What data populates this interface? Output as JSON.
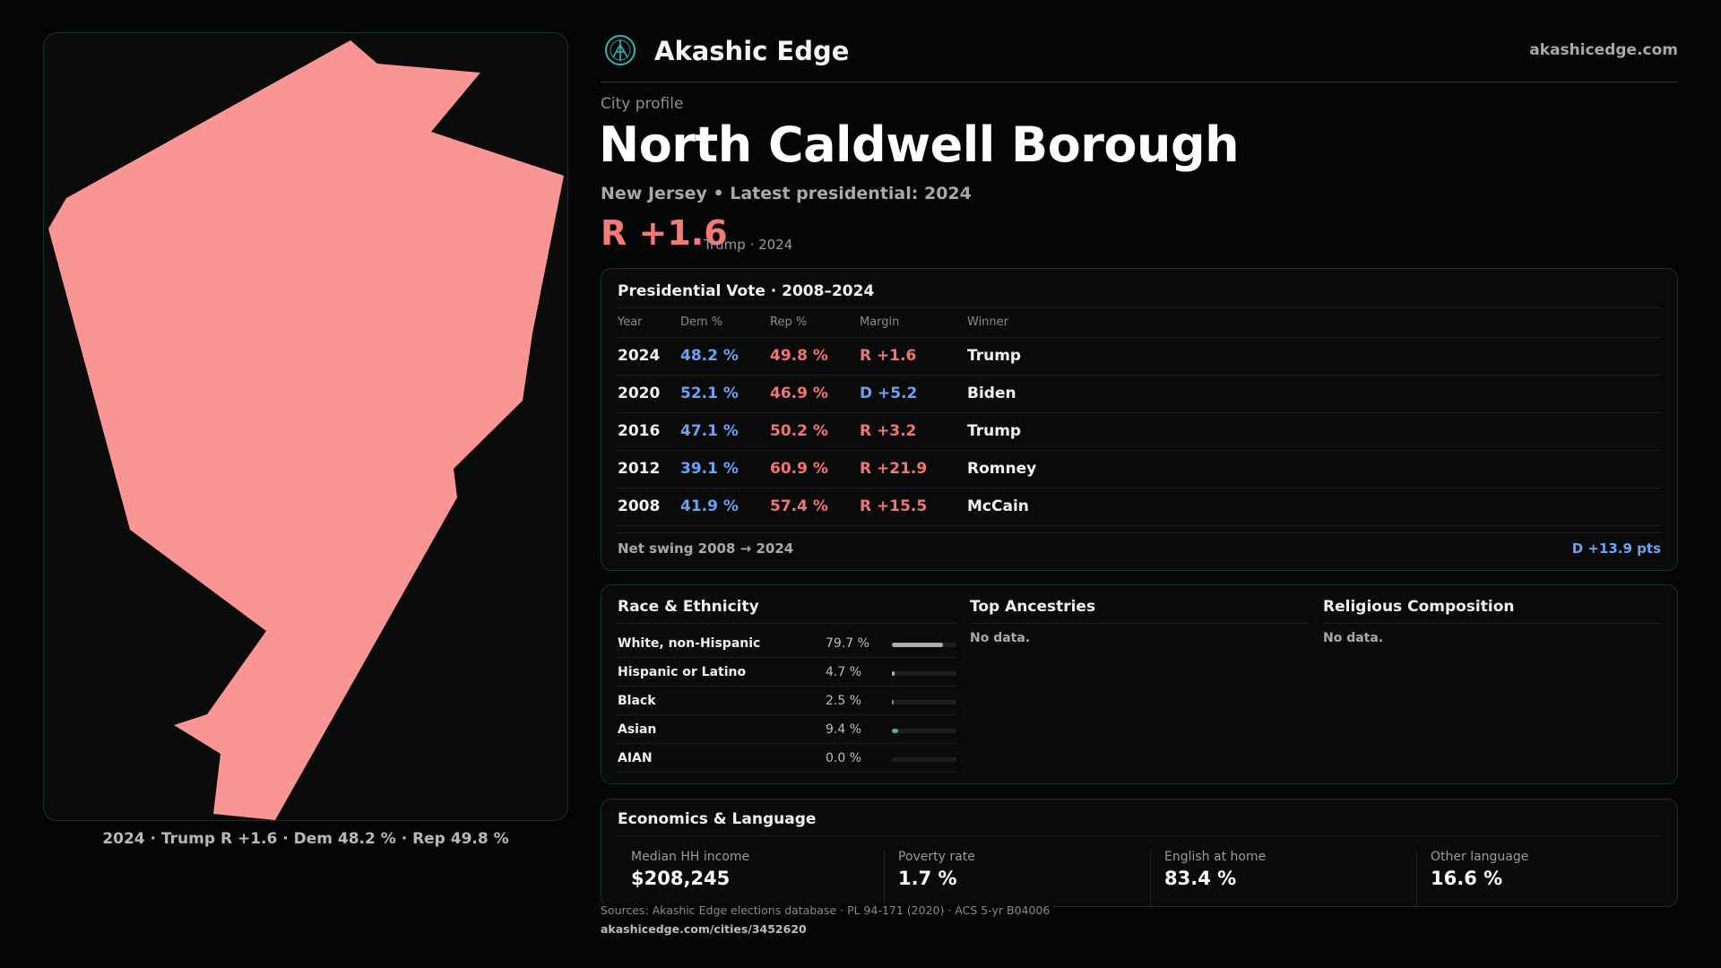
{
  "header": {
    "brand": "Akashic Edge",
    "site": "akashicedge.com",
    "accent": "#2fb6b4"
  },
  "profile": {
    "eyebrow": "City profile",
    "title": "North Caldwell Borough",
    "subtitle": "New Jersey • Latest presidential: 2024",
    "margin": "R +1.6",
    "margin_note": "Trump · 2024",
    "map_color": "#f99593"
  },
  "map": {
    "caption": "2024 · Trump R +1.6 · Dem 48.2 % · Rep 49.8 %"
  },
  "vote": {
    "title": "Presidential Vote · 2008–2024",
    "columns": [
      "Year",
      "Dem %",
      "Rep %",
      "Margin",
      "Winner"
    ],
    "rows": [
      {
        "year": "2024",
        "dem": "48.2 %",
        "rep": "49.8 %",
        "margin": "R +1.6",
        "party": "rep",
        "winner": "Trump"
      },
      {
        "year": "2020",
        "dem": "52.1 %",
        "rep": "46.9 %",
        "margin": "D +5.2",
        "party": "dem",
        "winner": "Biden"
      },
      {
        "year": "2016",
        "dem": "47.1 %",
        "rep": "50.2 %",
        "margin": "R +3.2",
        "party": "rep",
        "winner": "Trump"
      },
      {
        "year": "2012",
        "dem": "39.1 %",
        "rep": "60.9 %",
        "margin": "R +21.9",
        "party": "rep",
        "winner": "Romney"
      },
      {
        "year": "2008",
        "dem": "41.9 %",
        "rep": "57.4 %",
        "margin": "R +15.5",
        "party": "rep",
        "winner": "McCain"
      }
    ],
    "swing_label": "Net swing 2008 → 2024",
    "swing_value": "D +13.9 pts"
  },
  "race": {
    "title": "Race & Ethnicity",
    "rows": [
      {
        "name": "White, non-Hispanic",
        "pct": "79.7 %",
        "value": 79.7,
        "color": "#a9adb6"
      },
      {
        "name": "Hispanic or Latino",
        "pct": "4.7 %",
        "value": 4.7,
        "color": "#e2a64b"
      },
      {
        "name": "Black",
        "pct": "2.5 %",
        "value": 2.5,
        "color": "#7f7df0"
      },
      {
        "name": "Asian",
        "pct": "9.4 %",
        "value": 9.4,
        "color": "#35c08d"
      },
      {
        "name": "AIAN",
        "pct": "0.0 %",
        "value": 0.0,
        "color": "#d0d0d0"
      }
    ]
  },
  "ancestries": {
    "title": "Top Ancestries",
    "empty": "No data."
  },
  "religion": {
    "title": "Religious Composition",
    "empty": "No data."
  },
  "economics": {
    "title": "Economics & Language",
    "items": [
      {
        "label": "Median HH income",
        "value": "$208,245"
      },
      {
        "label": "Poverty rate",
        "value": "1.7 %"
      },
      {
        "label": "English at home",
        "value": "83.4 %"
      },
      {
        "label": "Other language",
        "value": "16.6 %"
      }
    ]
  },
  "footer": {
    "sources": "Sources: Akashic Edge elections database · PL 94-171 (2020) · ACS 5-yr B04006",
    "url": "akashicedge.com/cities/3452620"
  }
}
